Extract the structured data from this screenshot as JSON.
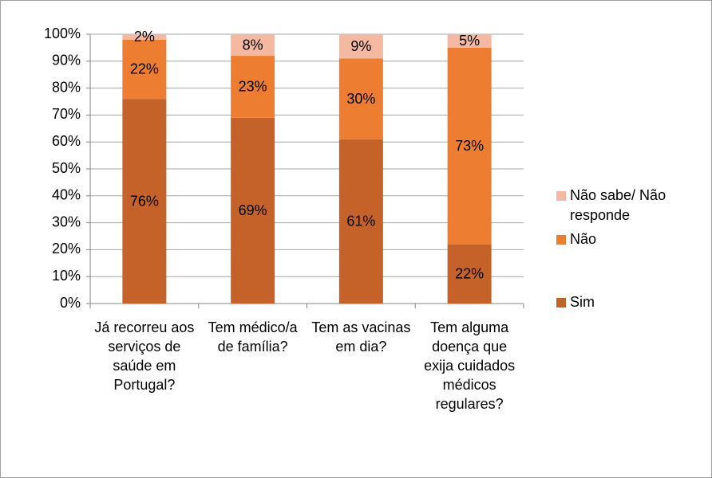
{
  "chart_data": {
    "type": "bar",
    "stacked": true,
    "categories": [
      "Já recorreu aos serviços de saúde em Portugal?",
      "Tem médico/a de família?",
      "Tem as vacinas em dia?",
      "Tem alguma doença que exija cuidados médicos regulares?"
    ],
    "series": [
      {
        "name": "Sim",
        "color": "#c5622a",
        "values": [
          76,
          69,
          61,
          22
        ],
        "value_labels": [
          "76%",
          "69%",
          "61%",
          "22%"
        ]
      },
      {
        "name": "Não",
        "color": "#ed7d31",
        "values": [
          22,
          23,
          30,
          73
        ],
        "value_labels": [
          "22%",
          "23%",
          "30%",
          "73%"
        ]
      },
      {
        "name": "Não sabe/ Não responde",
        "color": "#f4b9a0",
        "values": [
          2,
          8,
          9,
          5
        ],
        "value_labels": [
          "2%",
          "8%",
          "9%",
          "5%"
        ]
      }
    ],
    "ylim": [
      0,
      100
    ],
    "yticks": [
      {
        "value": 0,
        "label": "0%"
      },
      {
        "value": 10,
        "label": "10%"
      },
      {
        "value": 20,
        "label": "20%"
      },
      {
        "value": 30,
        "label": "30%"
      },
      {
        "value": 40,
        "label": "40%"
      },
      {
        "value": 50,
        "label": "50%"
      },
      {
        "value": 60,
        "label": "60%"
      },
      {
        "value": 70,
        "label": "70%"
      },
      {
        "value": 80,
        "label": "80%"
      },
      {
        "value": 90,
        "label": "90%"
      },
      {
        "value": 100,
        "label": "100%"
      }
    ],
    "grid": true,
    "legend": "right"
  }
}
